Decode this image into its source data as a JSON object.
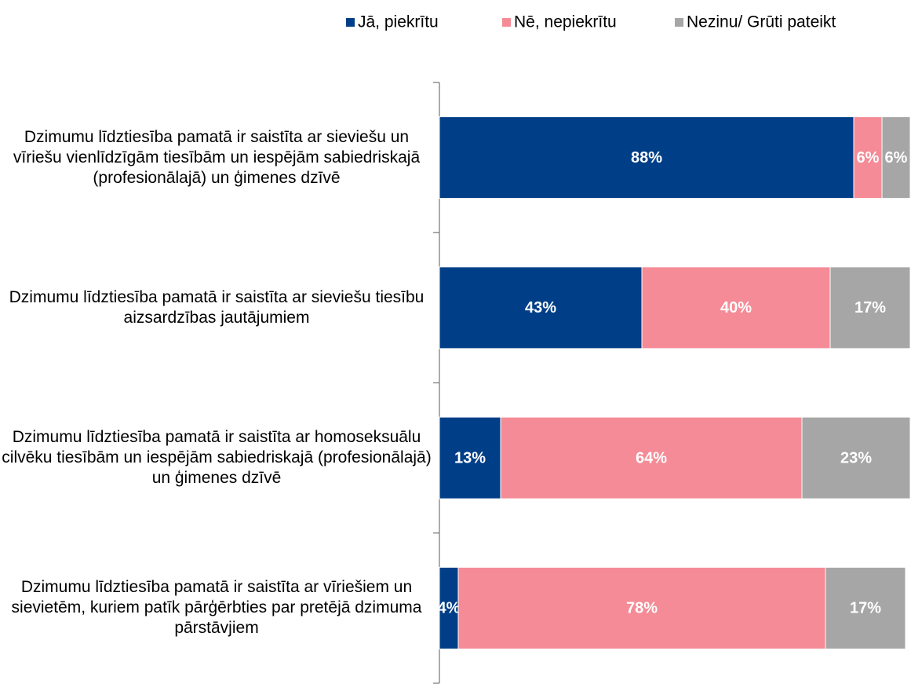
{
  "chart_data": {
    "type": "stacked-barh",
    "categories": [
      "Dzimumu līdztiesība pamatā ir saistīta ar sieviešu un vīriešu vienlīdzīgām tiesībām un iespējām sabiedriskajā (profesionālajā) un ģimenes dzīvē",
      "Dzimumu līdztiesība pamatā ir saistīta ar sieviešu tiesību aizsardzības jautājumiem",
      "Dzimumu līdztiesība pamatā ir saistīta ar homoseksuālu cilvēku tiesībām un iespējām sabiedriskajā (profesionālajā) un ģimenes dzīvē",
      "Dzimumu līdztiesība pamatā ir saistīta ar vīriešiem un sievietēm, kuriem patīk pārģērbties par pretējā dzimuma pārstāvjiem"
    ],
    "series": [
      {
        "name": "Jā, piekrītu",
        "color": "#003f87",
        "values": [
          88,
          43,
          13,
          4
        ],
        "value_labels": [
          "88%",
          "43%",
          "13%",
          "4%"
        ]
      },
      {
        "name": "Nē, nepiekrītu",
        "color": "#f48b96",
        "values": [
          6,
          40,
          64,
          78
        ],
        "value_labels": [
          "6%",
          "40%",
          "64%",
          "78%"
        ]
      },
      {
        "name": "Nezinu/ Grūti pateikt",
        "color": "#a6a6a6",
        "values": [
          6,
          17,
          23,
          17
        ],
        "value_labels": [
          "6%",
          "17%",
          "23%",
          "17%"
        ]
      }
    ],
    "xlim": [
      0,
      100
    ],
    "legend": "top"
  }
}
